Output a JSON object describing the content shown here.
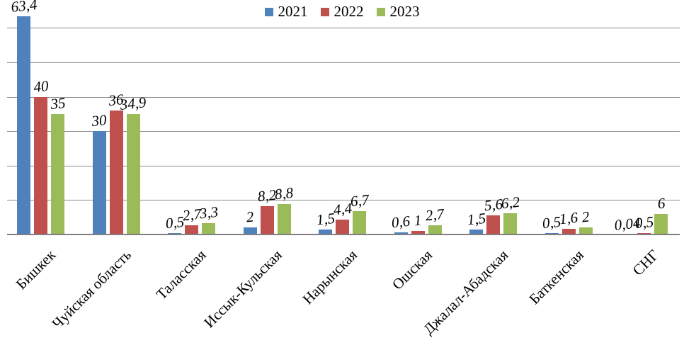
{
  "chart_data": {
    "type": "bar",
    "title": "",
    "xlabel": "",
    "ylabel": "",
    "categories": [
      "Бишкек",
      "Чуйская область",
      "Таласская",
      "Иссык-Кульская",
      "Нарынская",
      "Ошская",
      "Джалал-Абадская",
      "Баткенская",
      "СНГ"
    ],
    "series": [
      {
        "name": "2021",
        "color": "#4F81BD",
        "values": [
          63.4,
          30,
          0.5,
          2,
          1.5,
          0.6,
          1.5,
          0.5,
          0.04
        ],
        "labels": [
          "63,4",
          "30",
          "0,5",
          "2",
          "1,5",
          "0,6",
          "1,5",
          "0,5",
          "0,04"
        ]
      },
      {
        "name": "2022",
        "color": "#C0504D",
        "values": [
          40,
          36,
          2.7,
          8.2,
          4.4,
          1,
          5.6,
          1.6,
          0.5
        ],
        "labels": [
          "40",
          "36",
          "2,7",
          "8,2",
          "4,4",
          "1",
          "5,6",
          "1,6",
          "0,5"
        ]
      },
      {
        "name": "2023",
        "color": "#9BBB59",
        "values": [
          35,
          34.9,
          3.3,
          8.8,
          6.7,
          2.7,
          6.2,
          2,
          6
        ],
        "labels": [
          "35",
          "34,9",
          "3,3",
          "8,8",
          "6,7",
          "2,7",
          "6,2",
          "2",
          "6"
        ]
      }
    ],
    "ylim": [
      0,
      65
    ],
    "gridline_step": 10,
    "grid": true,
    "legend_position": "top",
    "value_labels_shown": true,
    "decimal_separator": ","
  },
  "colors": {
    "gridline": "#8c8c8c",
    "axis": "#7f7f7f",
    "text": "#000000",
    "background": "#ffffff"
  }
}
